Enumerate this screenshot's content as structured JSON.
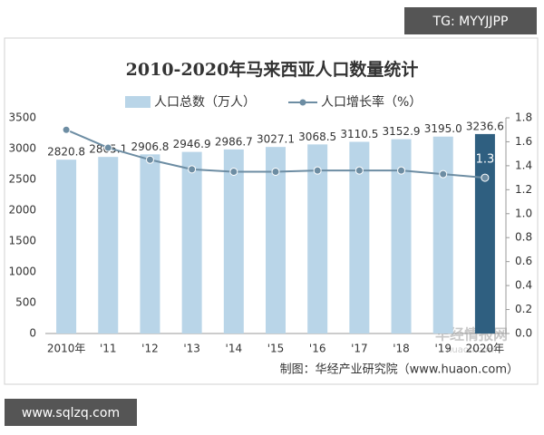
{
  "chart_data": {
    "type": "bar-line",
    "title": "2010-2020年马来西亚人口数量统计",
    "source": "制图：华经产业研究院（www.huaon.com）",
    "categories": [
      "2010年",
      "'11",
      "'12",
      "'13",
      "'14",
      "'15",
      "'16",
      "'17",
      "'18",
      "'19",
      "2020年"
    ],
    "series": [
      {
        "name": "人口总数（万人）",
        "type": "bar",
        "color": "#b9d5e8",
        "colors": [
          "#b9d5e8",
          "#b9d5e8",
          "#b9d5e8",
          "#b9d5e8",
          "#b9d5e8",
          "#b9d5e8",
          "#b9d5e8",
          "#b9d5e8",
          "#b9d5e8",
          "#b9d5e8",
          "#2f5f80"
        ],
        "values": [
          2820.8,
          2865.1,
          2906.8,
          2946.9,
          2986.7,
          3027.1,
          3068.5,
          3110.5,
          3152.9,
          3195.0,
          3236.6
        ],
        "value_labels": [
          "2820.8",
          "2865.1",
          "2906.8",
          "2946.9",
          "2986.7",
          "3027.1",
          "3068.5",
          "3110.5",
          "3152.9",
          "3195.0",
          "3236.6"
        ]
      },
      {
        "name": "人口增长率（%）",
        "type": "line",
        "axis": "y2",
        "color": "#6d8da3",
        "values": [
          1.7,
          1.55,
          1.45,
          1.37,
          1.35,
          1.35,
          1.36,
          1.36,
          1.36,
          1.33,
          1.3
        ],
        "value_labels": [
          null,
          null,
          null,
          null,
          null,
          null,
          null,
          null,
          null,
          null,
          "1.3"
        ]
      }
    ],
    "ylim": [
      0,
      3500
    ],
    "yticks": [
      0,
      500,
      1000,
      1500,
      2000,
      2500,
      3000,
      3500
    ],
    "y2lim": [
      0,
      1.8
    ],
    "y2ticks": [
      {
        "value": 0,
        "label": "0.0"
      },
      0.2,
      0.4,
      0.6,
      0.8,
      {
        "value": 1,
        "label": "1.0"
      },
      1.2,
      1.4,
      1.6,
      1.8
    ],
    "grid": false
  },
  "watermarks": [
    "TG: MYYJJPP",
    "www.sqlzq.com",
    "华经情报网",
    "huaon.com"
  ]
}
